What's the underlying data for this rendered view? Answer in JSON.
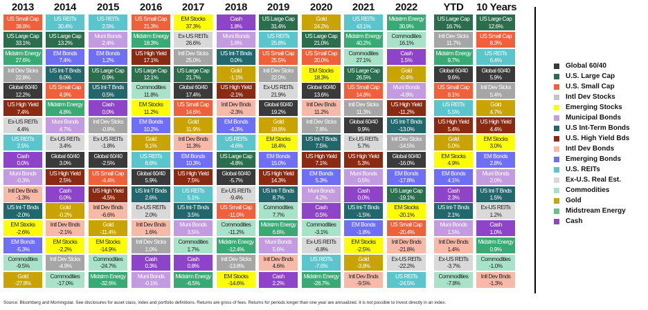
{
  "chart_data": {
    "type": "table",
    "colors": {
      "Global 60/40": "#3a3a3a",
      "US Large Cap": "#2a6e4e",
      "US Small Cap": "#f0603a",
      "Intl Dev Stcks": "#a6a6a6",
      "EM Stocks": "#ffff00",
      "Muni Bonds": "#c39be0",
      "US Int-T Bnds": "#22676b",
      "US High Yield": "#8b2a12",
      "Intl Dev Bnds": "#f7b9a8",
      "EM Bonds": "#6f6ff5",
      "US REITs": "#5bc5cc",
      "Ex-US REITs": "#d9d9d9",
      "Commodities": "#a8e2c8",
      "Gold": "#c9a400",
      "Midstrm Energy": "#3aaa75",
      "Cash": "#8e44c8"
    },
    "dark_text": [
      "EM Stocks",
      "Ex-US REITs",
      "Commodities",
      "Intl Dev Bnds"
    ],
    "columns": [
      {
        "header": "2013",
        "cells": [
          [
            "US Small Cap",
            "38.8%"
          ],
          [
            "US Large Cap",
            "33.1%"
          ],
          [
            "Midstrm Energy",
            "27.6%"
          ],
          [
            "Intl Dev Stcks",
            "22.8%"
          ],
          [
            "Global 60/40",
            "12.2%"
          ],
          [
            "US High Yield",
            "7.4%"
          ],
          [
            "Ex-US REITs",
            "4.4%"
          ],
          [
            "US REITs",
            "2.5%"
          ],
          [
            "Cash",
            "0.0%"
          ],
          [
            "Muni Bonds",
            "-0.3%"
          ],
          [
            "Intl Dev Bnds",
            "-1.3%"
          ],
          [
            "US Int-T Bnds",
            "-2.0%"
          ],
          [
            "EM Stocks",
            "-2.6%"
          ],
          [
            "EM Bonds",
            "-5.3%"
          ],
          [
            "Commodities",
            "-9.5%"
          ],
          [
            "Gold",
            "-27.8%"
          ]
        ]
      },
      {
        "header": "2014",
        "cells": [
          [
            "US REITs",
            "30.4%"
          ],
          [
            "US Large Cap",
            "13.2%"
          ],
          [
            "EM Bonds",
            "7.4%"
          ],
          [
            "US Int-T Bnds",
            "6.0%"
          ],
          [
            "US Small Cap",
            "4.9%"
          ],
          [
            "Midstrm Energy",
            "4.8%"
          ],
          [
            "Muni Bonds",
            "4.7%"
          ],
          [
            "Ex-US REITs",
            "3.4%"
          ],
          [
            "Global 60/40",
            "3.0%"
          ],
          [
            "US High Yield",
            "2.5%"
          ],
          [
            "Cash",
            "0.0%"
          ],
          [
            "Gold",
            "-0.2%"
          ],
          [
            "Intl Dev Bnds",
            "-2.1%"
          ],
          [
            "EM Stocks",
            "-2.2%"
          ],
          [
            "Intl Dev Stcks",
            "-4.9%"
          ],
          [
            "Commodities",
            "-17.0%"
          ]
        ]
      },
      {
        "header": "2015",
        "cells": [
          [
            "US REITs",
            "2.5%"
          ],
          [
            "Muni Bonds",
            "2.4%"
          ],
          [
            "EM Bonds",
            "1.2%"
          ],
          [
            "US Large Cap",
            "0.9%"
          ],
          [
            "US Int-T Bnds",
            "0.5%"
          ],
          [
            "Cash",
            "0.0%"
          ],
          [
            "Intl Dev Stcks",
            "-0.8%"
          ],
          [
            "Ex-US REITs",
            "-1.8%"
          ],
          [
            "Global 60/40",
            "-2.5%"
          ],
          [
            "US Small Cap",
            "-4.4%"
          ],
          [
            "US High Yield",
            "-4.5%"
          ],
          [
            "Intl Dev Bnds",
            "-6.6%"
          ],
          [
            "Gold",
            "-11.4%"
          ],
          [
            "EM Stocks",
            "-14.9%"
          ],
          [
            "Commodities",
            "-24.7%"
          ],
          [
            "Midstrm Energy",
            "-32.6%"
          ]
        ]
      },
      {
        "header": "2016",
        "cells": [
          [
            "US Small Cap",
            "21.3%"
          ],
          [
            "Midstrm Energy",
            "18.3%"
          ],
          [
            "US High Yield",
            "17.1%"
          ],
          [
            "US Large Cap",
            "12.1%"
          ],
          [
            "Commodities",
            "11.8%"
          ],
          [
            "EM Stocks",
            "11.2%"
          ],
          [
            "EM Bonds",
            "10.2%"
          ],
          [
            "Gold",
            "9.1%"
          ],
          [
            "US REITs",
            "8.6%"
          ],
          [
            "Global 60/40",
            "5.9%"
          ],
          [
            "US Int-T Bnds",
            "2.6%"
          ],
          [
            "Ex-US REITs",
            "2.0%"
          ],
          [
            "Intl Dev Bnds",
            "1.6%"
          ],
          [
            "Intl Dev Stcks",
            "1.0%"
          ],
          [
            "Cash",
            "0.3%"
          ],
          [
            "Muni Bonds",
            "-0.1%"
          ]
        ]
      },
      {
        "header": "2017",
        "cells": [
          [
            "EM Stocks",
            "37.3%"
          ],
          [
            "Ex-US REITs",
            "26.6%"
          ],
          [
            "Intl Dev Stcks",
            "25.0%"
          ],
          [
            "US Large Cap",
            "21.7%"
          ],
          [
            "Global 60/40",
            "17.4%"
          ],
          [
            "US Small Cap",
            "14.6%"
          ],
          [
            "Gold",
            "11.9%"
          ],
          [
            "Intl Dev Bnds",
            "11.3%"
          ],
          [
            "EM Bonds",
            "10.3%"
          ],
          [
            "US High Yield",
            "7.5%"
          ],
          [
            "US REITs",
            "5.1%"
          ],
          [
            "US Int-T Bnds",
            "3.5%"
          ],
          [
            "Muni Bonds",
            "3.5%"
          ],
          [
            "Commodities",
            "1.7%"
          ],
          [
            "Cash",
            "0.8%"
          ],
          [
            "Midstrm Energy",
            "-6.5%"
          ]
        ]
      },
      {
        "header": "2018",
        "cells": [
          [
            "Cash",
            "1.8%"
          ],
          [
            "Muni Bonds",
            "1.6%"
          ],
          [
            "US Int-T Bnds",
            "0.0%"
          ],
          [
            "Gold",
            "-1.1%"
          ],
          [
            "US High Yield",
            "-2.1%"
          ],
          [
            "Intl Dev Bnds",
            "-2.3%"
          ],
          [
            "EM Bonds",
            "-4.3%"
          ],
          [
            "US REITs",
            "-4.6%"
          ],
          [
            "US Large Cap",
            "-4.8%"
          ],
          [
            "Global 60/40",
            "-5.7%"
          ],
          [
            "Ex-US REITs",
            "-9.4%"
          ],
          [
            "US Small Cap",
            "-11.0%"
          ],
          [
            "Commodities",
            "-11.2%"
          ],
          [
            "Midstrm Energy",
            "-12.4%"
          ],
          [
            "Intl Dev Stcks",
            "-13.8%"
          ],
          [
            "EM Stocks",
            "-14.6%"
          ]
        ]
      },
      {
        "header": "2019",
        "cells": [
          [
            "US Large Cap",
            "31.4%"
          ],
          [
            "US REITs",
            "25.8%"
          ],
          [
            "US Small Cap",
            "25.5%"
          ],
          [
            "Intl Dev Stcks",
            "22.0%"
          ],
          [
            "Ex-US REITs",
            "21.9%"
          ],
          [
            "Global 60/40",
            "19.2%"
          ],
          [
            "Gold",
            "18.8%"
          ],
          [
            "EM Stocks",
            "18.4%"
          ],
          [
            "EM Bonds",
            "15.0%"
          ],
          [
            "US High Yield",
            "14.3%"
          ],
          [
            "US Int-T Bnds",
            "8.7%"
          ],
          [
            "Commodities",
            "7.7%"
          ],
          [
            "Midstrm Energy",
            "6.6%"
          ],
          [
            "Muni Bonds",
            "5.6%"
          ],
          [
            "Intl Dev Bnds",
            "4.6%"
          ],
          [
            "Cash",
            "2.2%"
          ]
        ]
      },
      {
        "header": "2020",
        "cells": [
          [
            "Gold",
            "24.2%"
          ],
          [
            "US Large Cap",
            "21.0%"
          ],
          [
            "US Small Cap",
            "20.0%"
          ],
          [
            "EM Stocks",
            "18.3%"
          ],
          [
            "Global 60/40",
            "13.6%"
          ],
          [
            "Intl Dev Bnds",
            "11.2%"
          ],
          [
            "Intl Dev Stcks",
            "7.8%"
          ],
          [
            "US Int-T Bnds",
            "7.5%"
          ],
          [
            "US High Yield",
            "7.1%"
          ],
          [
            "EM Bonds",
            "5.3%"
          ],
          [
            "Muni Bonds",
            "4.2%"
          ],
          [
            "Cash",
            "0.5%"
          ],
          [
            "Commodities",
            "-3.1%"
          ],
          [
            "Ex-US REITs",
            "-6.8%"
          ],
          [
            "US REITs",
            "-7.6%"
          ],
          [
            "Midstrm Energy",
            "-28.7%"
          ]
        ]
      },
      {
        "header": "2021",
        "cells": [
          [
            "US REITs",
            "43.1%"
          ],
          [
            "Midstrm Energy",
            "40.2%"
          ],
          [
            "Commodities",
            "27.1%"
          ],
          [
            "US Large Cap",
            "26.5%"
          ],
          [
            "US Small Cap",
            "14.8%"
          ],
          [
            "Intl Dev Stcks",
            "11.3%"
          ],
          [
            "Global 60/40",
            "9.9%"
          ],
          [
            "Ex-US REITs",
            "5.7%"
          ],
          [
            "US High Yield",
            "5.3%"
          ],
          [
            "Muni Bonds",
            "0.5%"
          ],
          [
            "Cash",
            "0.0%"
          ],
          [
            "US Int-T Bnds",
            "-1.5%"
          ],
          [
            "EM Bonds",
            "-1.8%"
          ],
          [
            "EM Stocks",
            "-2.5%"
          ],
          [
            "Gold",
            "-3.8%"
          ],
          [
            "Intl Dev Bnds",
            "-9.5%"
          ]
        ]
      },
      {
        "header": "2022",
        "cells": [
          [
            "Midstrm Energy",
            "30.9%"
          ],
          [
            "Commodities",
            "16.1%"
          ],
          [
            "Cash",
            "1.5%"
          ],
          [
            "Gold",
            "-0.4%"
          ],
          [
            "Muni Bonds",
            "-4.8%"
          ],
          [
            "US High Yield",
            "-11.2%"
          ],
          [
            "US Int-T Bnds",
            "-13.0%"
          ],
          [
            "Intl Dev Stcks",
            "-14.5%"
          ],
          [
            "Global 60/40",
            "-16.0%"
          ],
          [
            "EM Bonds",
            "-17.8%"
          ],
          [
            "US Large Cap",
            "-19.1%"
          ],
          [
            "EM Stocks",
            "-20.1%"
          ],
          [
            "US Small Cap",
            "-20.4%"
          ],
          [
            "Intl Dev Bnds",
            "-21.8%"
          ],
          [
            "Ex-US REITs",
            "-22.2%"
          ],
          [
            "US REITs",
            "-24.5%"
          ]
        ]
      },
      {
        "header": "YTD",
        "cells": [
          [
            "US Large Cap",
            "16.7%"
          ],
          [
            "Intl Dev Stcks",
            "11.7%"
          ],
          [
            "Midstrm Energy",
            "9.7%"
          ],
          [
            "Global 60/40",
            "9.6%"
          ],
          [
            "US Small Cap",
            "8.1%"
          ],
          [
            "US REITs",
            "5.5%"
          ],
          [
            "US High Yield",
            "5.4%"
          ],
          [
            "Gold",
            "5.0%"
          ],
          [
            "EM Stocks",
            "4.9%"
          ],
          [
            "EM Bonds",
            "4.1%"
          ],
          [
            "Cash",
            "2.3%"
          ],
          [
            "US Int-T Bnds",
            "2.1%"
          ],
          [
            "Muni Bonds",
            "1.5%"
          ],
          [
            "Intl Dev Bnds",
            "1.4%"
          ],
          [
            "Ex-US REITs",
            "-3.7%"
          ],
          [
            "Commodities",
            "-7.8%"
          ]
        ]
      },
      {
        "header": "10 Years",
        "cells": [
          [
            "US Large Cap",
            "12.6%"
          ],
          [
            "US Small Cap",
            "8.3%"
          ],
          [
            "US REITs",
            "6.4%"
          ],
          [
            "Global 60/40",
            "5.9%"
          ],
          [
            "Intl Dev Stcks",
            "5.4%"
          ],
          [
            "Gold",
            "4.7%"
          ],
          [
            "US High Yield",
            "4.4%"
          ],
          [
            "EM Stocks",
            "3.0%"
          ],
          [
            "EM Bonds",
            "2.8%"
          ],
          [
            "Muni Bonds",
            "2.0%"
          ],
          [
            "US Int-T Bnds",
            "1.5%"
          ],
          [
            "Ex-US REITs",
            "1.2%"
          ],
          [
            "Cash",
            "1.0%"
          ],
          [
            "Midstrm Energy",
            "0.9%"
          ],
          [
            "Commodities",
            "-1.0%"
          ],
          [
            "Intl Dev Bnds",
            "-1.3%"
          ]
        ]
      }
    ],
    "legend": [
      {
        "label": "Global 60/40",
        "color": "#3a3a3a"
      },
      {
        "label": "U.S. Large Cap",
        "color": "#2a6e4e"
      },
      {
        "label": "U.S. Small Cap",
        "color": "#f0603a"
      },
      {
        "label": "Intl Dev Stocks",
        "color": "#c4c4c4"
      },
      {
        "label": "Emerging Stocks",
        "color": "#ffff00"
      },
      {
        "label": "Municipal Bonds",
        "color": "#c39be0"
      },
      {
        "label": "U.S Int-Term Bonds",
        "color": "#22676b"
      },
      {
        "label": "U.S. High Yield Bds",
        "color": "#8b2a12"
      },
      {
        "label": "Intl Dev Bonds",
        "color": "#f7b9a8"
      },
      {
        "label": "Emerging Bonds",
        "color": "#6f6ff5"
      },
      {
        "label": "U.S. REITs",
        "color": "#5bc5cc"
      },
      {
        "label": "Ex-U.S. Real Est.",
        "color": "#d9d9d9"
      },
      {
        "label": "Commodities",
        "color": "#a8e2c8"
      },
      {
        "label": "Gold",
        "color": "#c9a400"
      },
      {
        "label": "Midstream Energy",
        "color": "#5cc491"
      },
      {
        "label": "Cash",
        "color": "#8e44c8"
      }
    ]
  },
  "footnote": "Source: Bloomberg and Morningstar. See disclosures for asset class, index and portfolio definitions. Returns are gross of fees. Returns for periods longer than one year are annualized. It is not possible to invest directly in an index."
}
